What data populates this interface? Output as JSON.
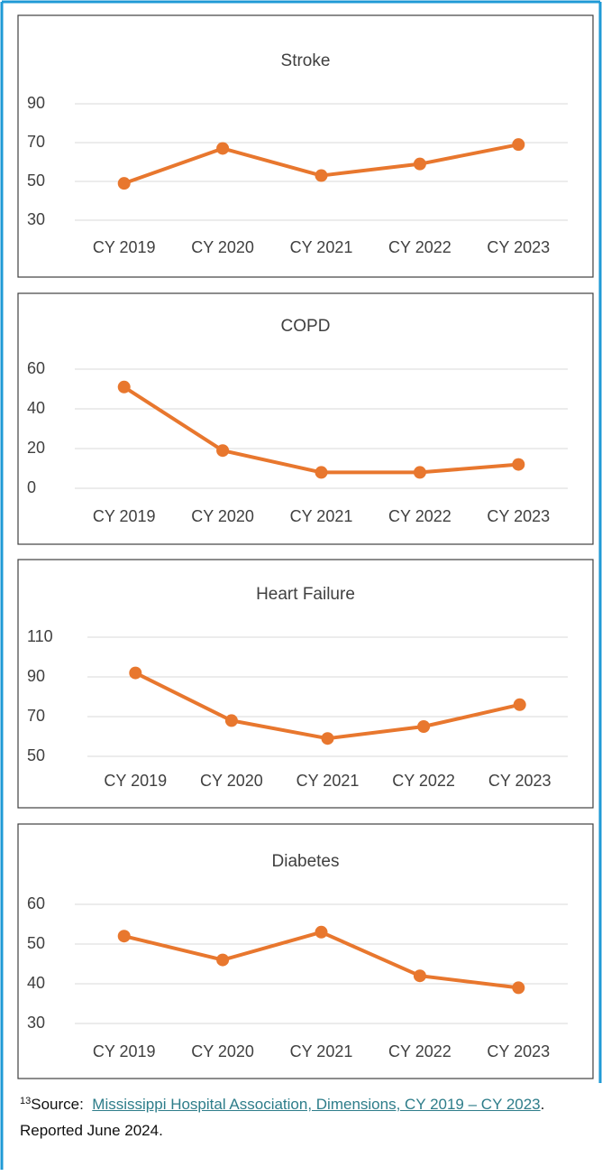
{
  "chart_data": [
    {
      "type": "line",
      "title": "Stroke",
      "categories": [
        "CY 2019",
        "CY 2020",
        "CY 2021",
        "CY 2022",
        "CY 2023"
      ],
      "values": [
        49,
        67,
        53,
        59,
        69
      ],
      "color": "#e8772e",
      "ylim": [
        30,
        90
      ],
      "yticks": [
        30,
        50,
        70,
        90
      ],
      "grid": true
    },
    {
      "type": "line",
      "title": "COPD",
      "categories": [
        "CY 2019",
        "CY 2020",
        "CY 2021",
        "CY 2022",
        "CY 2023"
      ],
      "values": [
        51,
        19,
        8,
        8,
        12
      ],
      "color": "#e8772e",
      "ylim": [
        0,
        60
      ],
      "yticks": [
        0,
        20,
        40,
        60
      ],
      "grid": true
    },
    {
      "type": "line",
      "title": "Heart Failure",
      "categories": [
        "CY 2019",
        "CY 2020",
        "CY 2021",
        "CY 2022",
        "CY 2023"
      ],
      "values": [
        92,
        68,
        59,
        65,
        76
      ],
      "color": "#e8772e",
      "ylim": [
        50,
        110
      ],
      "yticks": [
        50,
        70,
        90,
        110
      ],
      "grid": true
    },
    {
      "type": "line",
      "title": "Diabetes",
      "categories": [
        "CY 2019",
        "CY 2020",
        "CY 2021",
        "CY 2022",
        "CY 2023"
      ],
      "values": [
        52,
        46,
        53,
        42,
        39
      ],
      "color": "#e8772e",
      "ylim": [
        30,
        60
      ],
      "yticks": [
        30,
        40,
        50,
        60
      ],
      "grid": true
    }
  ],
  "footnote": {
    "number": "13",
    "prefix": "Source:",
    "link": "Mississippi Hospital Association, Dimensions, CY 2019 – CY 2023",
    "suffix": ". Reported June 2024."
  }
}
